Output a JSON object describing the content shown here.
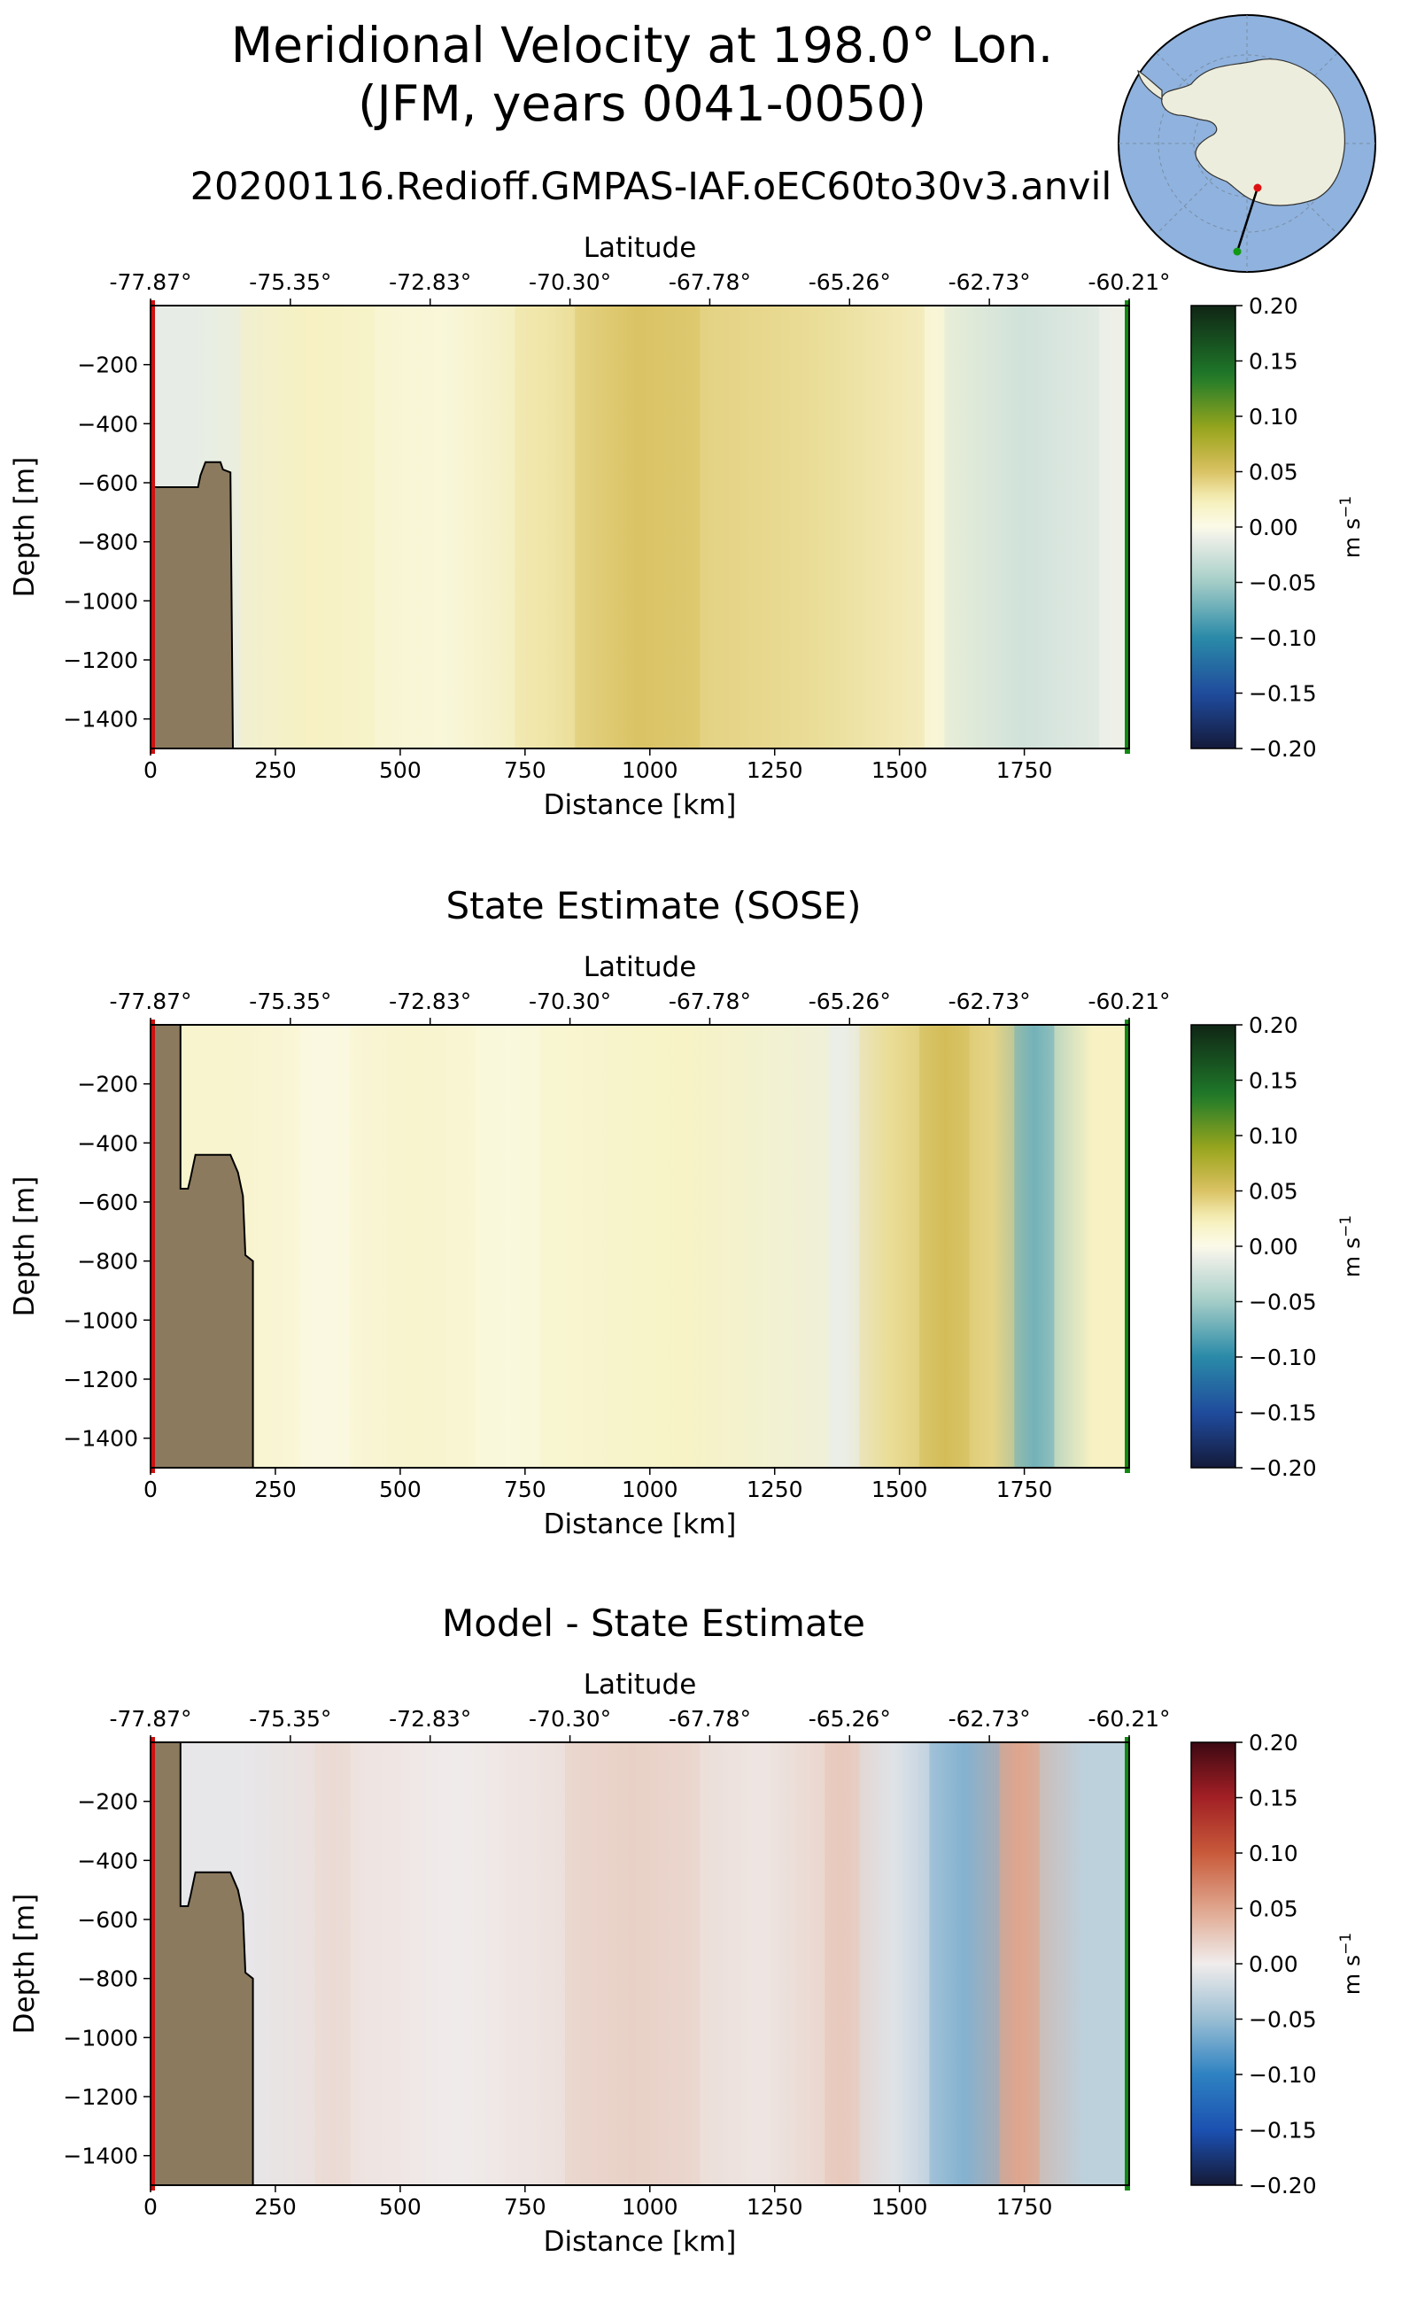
{
  "figure": {
    "title_line1": "Meridional Velocity at 198.0° Lon.",
    "title_line2": "(JFM, years 0041-0050)",
    "run_name": "20200116.Redioff.GMPAS-IAF.oEC60to30v3.anvil",
    "colors": {
      "bathymetry": "#8b7a5e",
      "start_marker": "#cc1111",
      "end_marker": "#118811",
      "ocean_map": "#8fb2de",
      "land_map": "#ededdd"
    }
  },
  "chart_data": [
    {
      "type": "heatmap",
      "panel": "model",
      "title": "",
      "xlabel": "Distance [km]",
      "ylabel": "Depth [m]",
      "top_axis_label": "Latitude",
      "top_ticks": [
        "-77.87°",
        "-75.35°",
        "-72.83°",
        "-70.30°",
        "-67.78°",
        "-65.26°",
        "-62.73°",
        "-60.21°"
      ],
      "top_tick_distances_km": [
        0,
        280,
        560,
        840,
        1120,
        1400,
        1680,
        1960
      ],
      "xticks": [
        0,
        250,
        500,
        750,
        1000,
        1250,
        1500,
        1750
      ],
      "yticks": [
        -200,
        -400,
        -600,
        -800,
        -1000,
        -1200,
        -1400
      ],
      "xlim": [
        0,
        1960
      ],
      "ylim": [
        -1500,
        0
      ],
      "colorbar": {
        "label": "m s",
        "label_sup": "−1",
        "colormap": "speed_diverging",
        "vmin": -0.2,
        "vmax": 0.2,
        "ticks": [
          "0.20",
          "0.15",
          "0.10",
          "0.05",
          "0.00",
          "−0.05",
          "−0.10",
          "−0.15",
          "−0.20"
        ]
      },
      "field_columns": [
        {
          "x0": 0,
          "x1": 180,
          "v": -0.012
        },
        {
          "x0": 180,
          "x1": 450,
          "v": 0.02
        },
        {
          "x0": 450,
          "x1": 730,
          "v": 0.008
        },
        {
          "x0": 730,
          "x1": 850,
          "v": 0.03
        },
        {
          "x0": 850,
          "x1": 1100,
          "v": 0.05
        },
        {
          "x0": 1100,
          "x1": 1550,
          "v": 0.035
        },
        {
          "x0": 1550,
          "x1": 1590,
          "v": 0.01
        },
        {
          "x0": 1590,
          "x1": 1900,
          "v": -0.025
        },
        {
          "x0": 1900,
          "x1": 1960,
          "v": -0.008
        }
      ],
      "bathymetry_outline": [
        [
          0,
          -1500
        ],
        [
          0,
          -615
        ],
        [
          95,
          -615
        ],
        [
          100,
          -575
        ],
        [
          110,
          -530
        ],
        [
          140,
          -530
        ],
        [
          145,
          -555
        ],
        [
          160,
          -565
        ],
        [
          165,
          -1500
        ]
      ]
    },
    {
      "type": "heatmap",
      "panel": "sose",
      "title": "State Estimate (SOSE)",
      "xlabel": "Distance [km]",
      "ylabel": "Depth [m]",
      "top_axis_label": "Latitude",
      "top_ticks": [
        "-77.87°",
        "-75.35°",
        "-72.83°",
        "-70.30°",
        "-67.78°",
        "-65.26°",
        "-62.73°",
        "-60.21°"
      ],
      "top_tick_distances_km": [
        0,
        280,
        560,
        840,
        1120,
        1400,
        1680,
        1960
      ],
      "xticks": [
        0,
        250,
        500,
        750,
        1000,
        1250,
        1500,
        1750
      ],
      "yticks": [
        -200,
        -400,
        -600,
        -800,
        -1000,
        -1200,
        -1400
      ],
      "xlim": [
        0,
        1960
      ],
      "ylim": [
        -1500,
        0
      ],
      "colorbar": {
        "label": "m s",
        "label_sup": "−1",
        "colormap": "speed_diverging",
        "vmin": -0.2,
        "vmax": 0.2,
        "ticks": [
          "0.20",
          "0.15",
          "0.10",
          "0.05",
          "0.00",
          "−0.05",
          "−0.10",
          "−0.15",
          "−0.20"
        ]
      },
      "field_columns": [
        {
          "x0": 0,
          "x1": 300,
          "v": 0.015
        },
        {
          "x0": 300,
          "x1": 400,
          "v": 0.004
        },
        {
          "x0": 400,
          "x1": 650,
          "v": 0.015
        },
        {
          "x0": 650,
          "x1": 780,
          "v": 0.006
        },
        {
          "x0": 780,
          "x1": 1360,
          "v": 0.018
        },
        {
          "x0": 1360,
          "x1": 1420,
          "v": -0.01
        },
        {
          "x0": 1420,
          "x1": 1540,
          "v": 0.035
        },
        {
          "x0": 1540,
          "x1": 1640,
          "v": 0.055
        },
        {
          "x0": 1640,
          "x1": 1730,
          "v": 0.04
        },
        {
          "x0": 1730,
          "x1": 1810,
          "v": -0.07
        },
        {
          "x0": 1810,
          "x1": 1960,
          "v": 0.02
        }
      ],
      "bathymetry_outline": [
        [
          0,
          -1500
        ],
        [
          0,
          0
        ],
        [
          60,
          0
        ],
        [
          60,
          -555
        ],
        [
          75,
          -555
        ],
        [
          80,
          -520
        ],
        [
          90,
          -440
        ],
        [
          160,
          -440
        ],
        [
          175,
          -500
        ],
        [
          185,
          -580
        ],
        [
          190,
          -780
        ],
        [
          205,
          -800
        ],
        [
          205,
          -1500
        ]
      ]
    },
    {
      "type": "heatmap",
      "panel": "difference",
      "title": "Model - State Estimate",
      "xlabel": "Distance [km]",
      "ylabel": "Depth [m]",
      "top_axis_label": "Latitude",
      "top_ticks": [
        "-77.87°",
        "-75.35°",
        "-72.83°",
        "-70.30°",
        "-67.78°",
        "-65.26°",
        "-62.73°",
        "-60.21°"
      ],
      "top_tick_distances_km": [
        0,
        280,
        560,
        840,
        1120,
        1400,
        1680,
        1960
      ],
      "xticks": [
        0,
        250,
        500,
        750,
        1000,
        1250,
        1500,
        1750
      ],
      "yticks": [
        -200,
        -400,
        -600,
        -800,
        -1000,
        -1200,
        -1400
      ],
      "xlim": [
        0,
        1960
      ],
      "ylim": [
        -1500,
        0
      ],
      "colorbar": {
        "label": "m s",
        "label_sup": "−1",
        "colormap": "balance",
        "vmin": -0.2,
        "vmax": 0.2,
        "ticks": [
          "0.20",
          "0.15",
          "0.10",
          "0.05",
          "0.00",
          "−0.05",
          "−0.10",
          "−0.15",
          "−0.20"
        ]
      },
      "field_columns": [
        {
          "x0": 0,
          "x1": 330,
          "v": -0.005
        },
        {
          "x0": 330,
          "x1": 400,
          "v": 0.012
        },
        {
          "x0": 400,
          "x1": 830,
          "v": 0.0
        },
        {
          "x0": 830,
          "x1": 1100,
          "v": 0.02
        },
        {
          "x0": 1100,
          "x1": 1350,
          "v": 0.005
        },
        {
          "x0": 1350,
          "x1": 1420,
          "v": 0.025
        },
        {
          "x0": 1420,
          "x1": 1560,
          "v": -0.01
        },
        {
          "x0": 1560,
          "x1": 1700,
          "v": -0.06
        },
        {
          "x0": 1700,
          "x1": 1780,
          "v": 0.05
        },
        {
          "x0": 1780,
          "x1": 1960,
          "v": -0.03
        }
      ],
      "bathymetry_outline": [
        [
          0,
          -1500
        ],
        [
          0,
          0
        ],
        [
          60,
          0
        ],
        [
          60,
          -555
        ],
        [
          75,
          -555
        ],
        [
          80,
          -520
        ],
        [
          90,
          -440
        ],
        [
          160,
          -440
        ],
        [
          175,
          -500
        ],
        [
          185,
          -580
        ],
        [
          190,
          -780
        ],
        [
          205,
          -800
        ],
        [
          205,
          -1500
        ]
      ]
    }
  ]
}
